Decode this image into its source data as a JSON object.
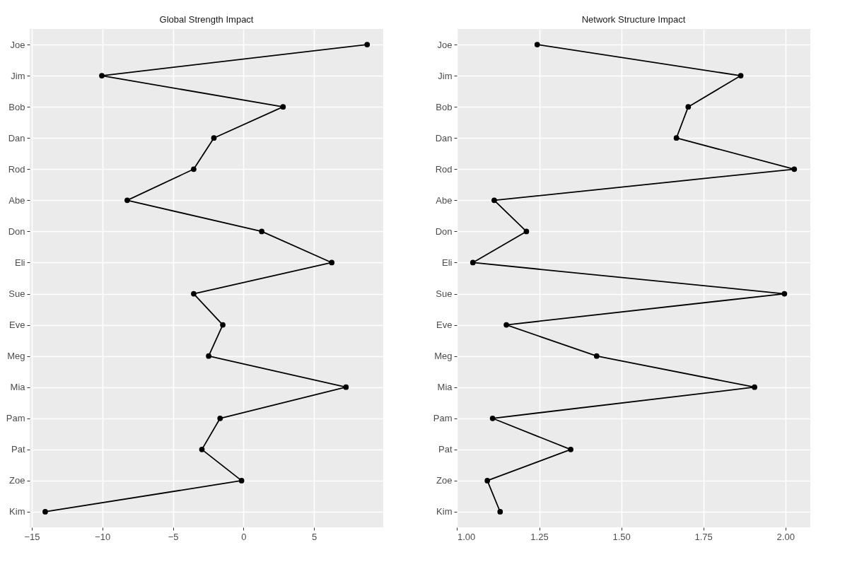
{
  "chart_data": [
    {
      "type": "line",
      "orientation": "horizontal",
      "title": "Global Strength Impact",
      "categories": [
        "Joe",
        "Jim",
        "Bob",
        "Dan",
        "Rod",
        "Abe",
        "Don",
        "Eli",
        "Sue",
        "Eve",
        "Meg",
        "Mia",
        "Pam",
        "Pat",
        "Zoe",
        "Kim"
      ],
      "series": [
        {
          "color": "#000000",
          "values": [
            8.76,
            -10.04,
            2.8,
            -2.1,
            -3.53,
            -8.24,
            1.29,
            6.25,
            -3.53,
            -1.47,
            -2.47,
            7.26,
            -1.66,
            -2.95,
            -0.14,
            -14.05
          ]
        }
      ],
      "xlim": [
        -15.15,
        9.9
      ],
      "xticks": [
        {
          "value": -15,
          "label": "−15"
        },
        {
          "value": -10,
          "label": "−10"
        },
        {
          "value": -5,
          "label": "−5"
        },
        0,
        5
      ],
      "marker": "circle",
      "grid": true
    },
    {
      "type": "line",
      "orientation": "horizontal",
      "title": "Network Structure Impact",
      "categories": [
        "Joe",
        "Jim",
        "Bob",
        "Dan",
        "Rod",
        "Abe",
        "Don",
        "Eli",
        "Sue",
        "Eve",
        "Meg",
        "Mia",
        "Pam",
        "Pat",
        "Zoe",
        "Kim"
      ],
      "series": [
        {
          "color": "#000000",
          "values": [
            1.244,
            1.864,
            1.704,
            1.668,
            2.027,
            1.113,
            1.211,
            1.048,
            1.997,
            1.15,
            1.425,
            1.906,
            1.108,
            1.346,
            1.092,
            1.131
          ]
        }
      ],
      "xlim": [
        0.999,
        2.076
      ],
      "xticks": [
        {
          "value": 1,
          "label": "1.00"
        },
        {
          "value": 1.25,
          "label": "1.25"
        },
        {
          "value": 1.5,
          "label": "1.50"
        },
        {
          "value": 1.75,
          "label": "1.75"
        },
        {
          "value": 2,
          "label": "2.00"
        }
      ],
      "marker": "circle",
      "grid": true
    }
  ]
}
